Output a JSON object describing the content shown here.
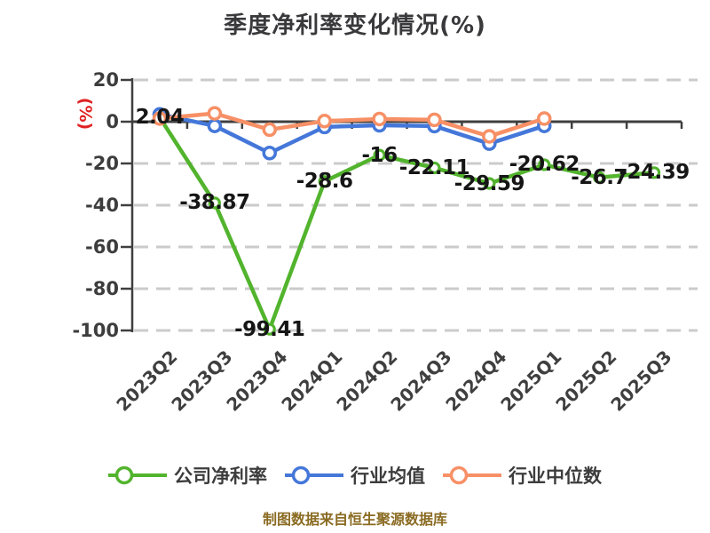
{
  "title": "季度净利率变化情况(%)",
  "y_axis_unit": "(%)",
  "footer": "制图数据来自恒生聚源数据库",
  "legend": {
    "items": [
      "公司净利率",
      "行业均值",
      "行业中位数"
    ]
  },
  "colors": {
    "company": "#52b42d",
    "industry_avg": "#4477d9",
    "industry_median": "#f79066",
    "grid": "#cbcbcb",
    "axis": "#3f3f3f",
    "tick_label": "#3d3d3d",
    "x_label": "#3f3f3f",
    "data_label": "#161616",
    "title": "#39393c",
    "unit": "#e02222",
    "footer": "#8a6b22",
    "legend_text": "#3c3c3c",
    "marker_fill": "#ffffff"
  },
  "chart_data": {
    "type": "line",
    "title": "季度净利率变化情况(%)",
    "ylabel": "(%)",
    "xlabel": "",
    "categories": [
      "2023Q2",
      "2023Q3",
      "2023Q4",
      "2024Q1",
      "2024Q2",
      "2024Q3",
      "2024Q4",
      "2025Q1",
      "2025Q2",
      "2025Q3"
    ],
    "yticks": [
      20,
      0,
      -20,
      -40,
      -60,
      -80,
      -100
    ],
    "ylim": [
      -100,
      20
    ],
    "grid": "horizontal-dashed",
    "legend_position": "bottom",
    "series": [
      {
        "name": "公司净利率",
        "color": "#52b42d",
        "values": [
          2.04,
          -38.87,
          -99.41,
          -28.6,
          -16,
          -22.11,
          -29.59,
          -20.62,
          -26.7,
          -24.39
        ],
        "labels": [
          "2.04",
          "-38.87",
          "-99.41",
          "-28.6",
          "-16",
          "-22.11",
          "-29.59",
          "-20.62",
          "-26.7",
          "-24.39"
        ],
        "show_labels": true
      },
      {
        "name": "行业均值",
        "color": "#4477d9",
        "values": [
          3.5,
          -2.0,
          -15.0,
          -2.5,
          -1.7,
          -2.1,
          -10.5,
          -2.0
        ],
        "show_labels": false,
        "values_estimated": true
      },
      {
        "name": "行业中位数",
        "color": "#f79066",
        "values": [
          1.5,
          4.0,
          -3.8,
          0.3,
          1.3,
          0.9,
          -7.0,
          1.5
        ],
        "show_labels": false,
        "values_estimated": true
      }
    ]
  }
}
